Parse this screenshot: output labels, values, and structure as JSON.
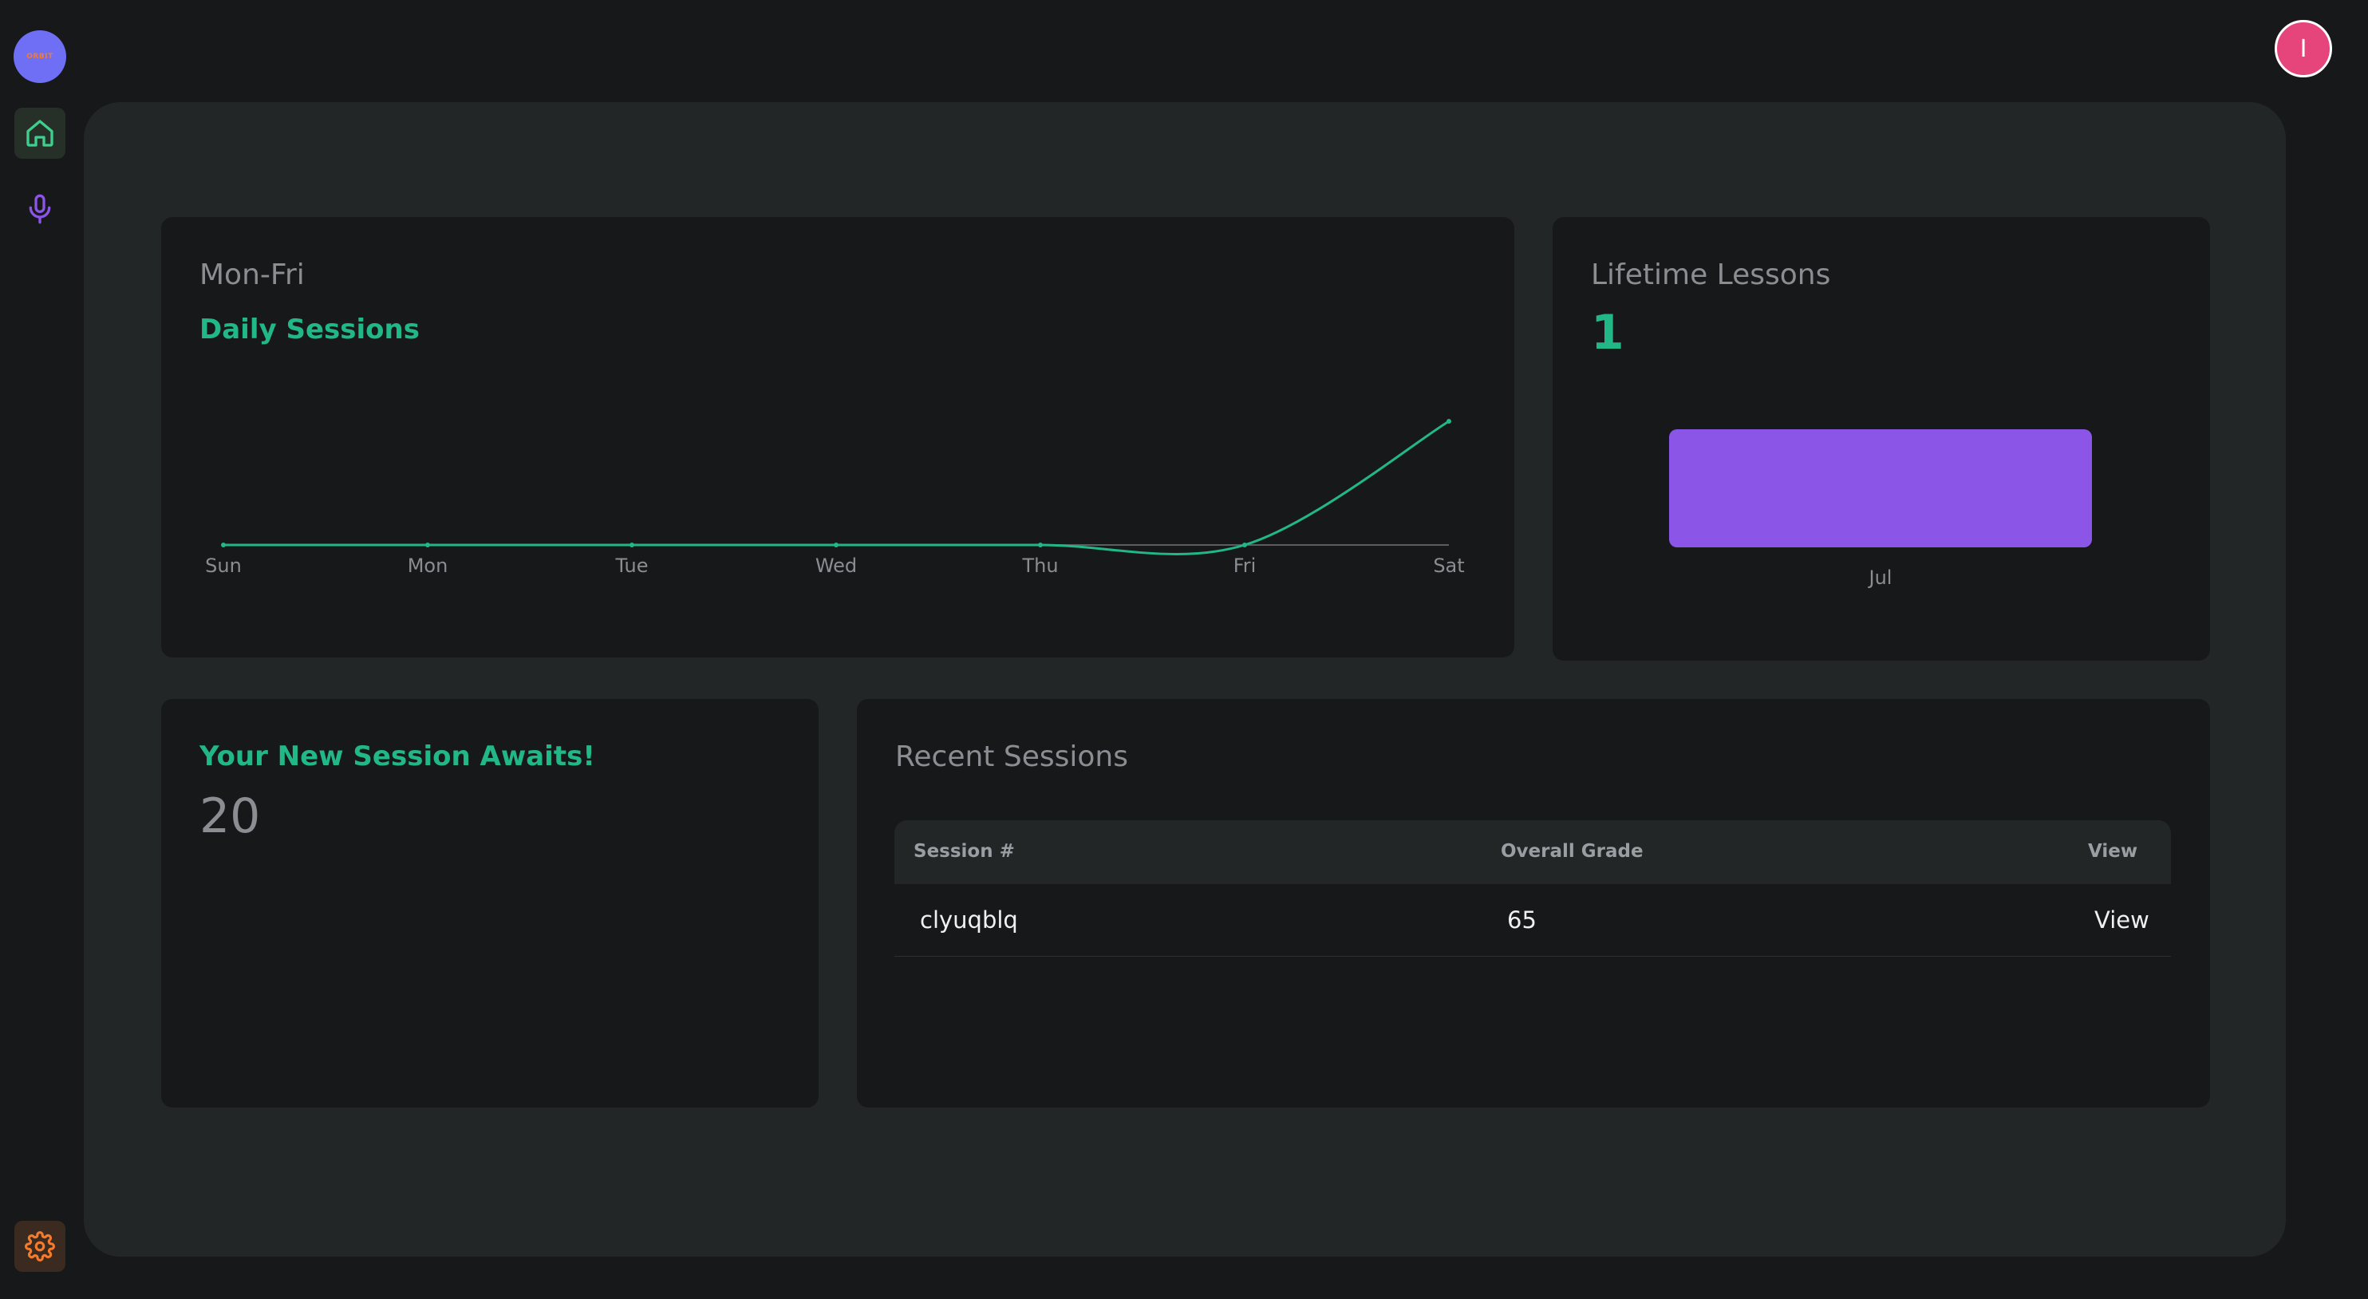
{
  "sidebar": {
    "logo_text": "ORBIT",
    "items": [
      {
        "icon": "home-icon"
      },
      {
        "icon": "microphone-icon"
      },
      {
        "icon": "gear-icon"
      }
    ]
  },
  "user": {
    "avatar_initial": "I"
  },
  "colors": {
    "accent_green": "#22b886",
    "accent_purple": "#8b55e8",
    "avatar_pink": "#e6457b",
    "home_icon": "#3ecf8e",
    "mic_icon": "#8b55e8",
    "settings_icon": "#f47b2c"
  },
  "daily_card": {
    "subtitle": "Mon-Fri",
    "title": "Daily Sessions"
  },
  "lifetime_card": {
    "title": "Lifetime Lessons",
    "value": "1"
  },
  "session_card": {
    "title": "Your New Session Awaits!",
    "value": "20"
  },
  "recent_card": {
    "title": "Recent Sessions",
    "columns": [
      "Session #",
      "Overall Grade",
      "View"
    ],
    "rows": [
      {
        "session": "clyuqblq",
        "grade": "65",
        "view": "View"
      }
    ]
  },
  "chart_data": [
    {
      "type": "line",
      "x": [
        "Sun",
        "Mon",
        "Tue",
        "Wed",
        "Thu",
        "Fri",
        "Sat"
      ],
      "values": [
        0,
        0,
        0,
        0,
        0,
        0,
        1
      ],
      "smooth": true,
      "color": "#22b886",
      "grid": false
    },
    {
      "type": "bar",
      "categories": [
        "Jul"
      ],
      "values": [
        1
      ],
      "color": "#8b55e8",
      "grid": false
    }
  ]
}
